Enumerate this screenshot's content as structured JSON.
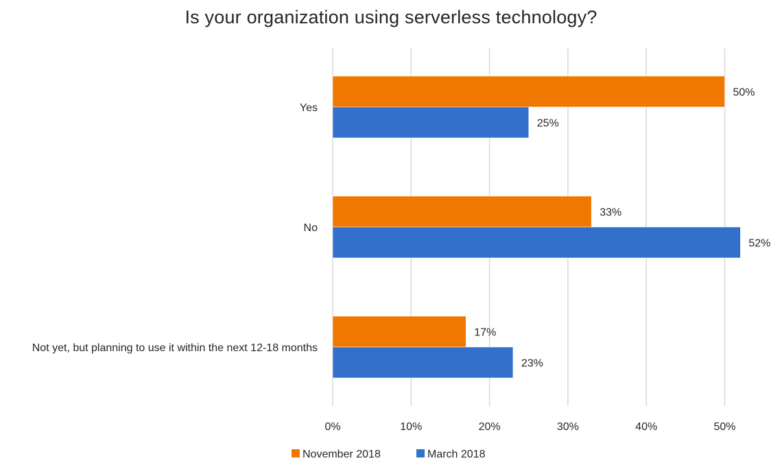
{
  "chart_data": {
    "type": "bar",
    "orientation": "horizontal",
    "title": "Is your organization using serverless technology?",
    "categories": [
      "Yes",
      "No",
      "Not yet, but planning to use it within the next 12-18 months"
    ],
    "series": [
      {
        "name": "November 2018",
        "color": "#f07800",
        "values": [
          50,
          33,
          17
        ],
        "labels": [
          "50%",
          "33%",
          "17%"
        ]
      },
      {
        "name": "March 2018",
        "color": "#3370cc",
        "values": [
          25,
          52,
          23
        ],
        "labels": [
          "25%",
          "52%",
          "23%"
        ]
      }
    ],
    "xticks": [
      "0%",
      "10%",
      "20%",
      "30%",
      "40%",
      "50%"
    ],
    "xlim": [
      0,
      50
    ],
    "grid": true,
    "legend_position": "bottom"
  }
}
